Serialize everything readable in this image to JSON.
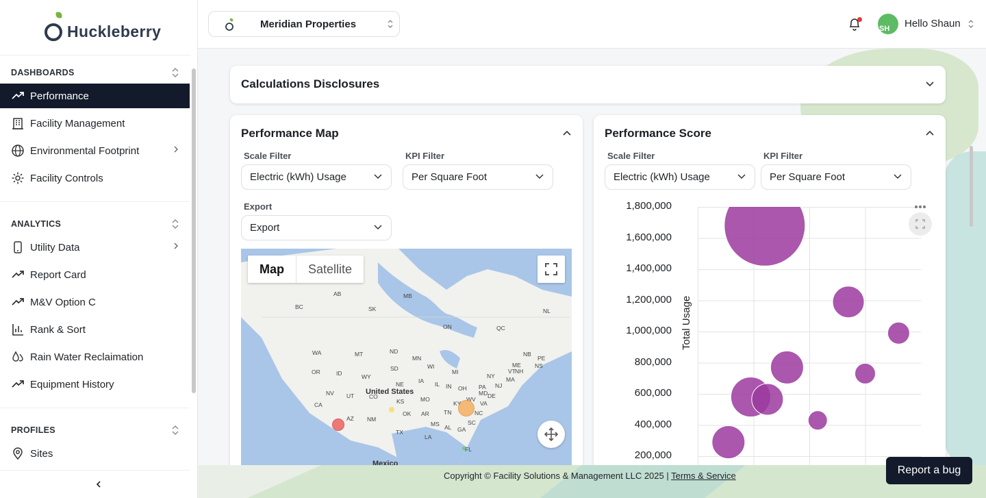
{
  "brand": {
    "name": "Huckleberry"
  },
  "sidebar": {
    "sections": [
      {
        "title": "DASHBOARDS",
        "items": [
          {
            "label": "Performance",
            "icon": "trending-up-icon",
            "active": true
          },
          {
            "label": "Facility Management",
            "icon": "building-icon"
          },
          {
            "label": "Environmental Footprint",
            "icon": "globe-icon",
            "has_children": true
          },
          {
            "label": "Facility Controls",
            "icon": "gear-icon"
          }
        ]
      },
      {
        "title": "ANALYTICS",
        "items": [
          {
            "label": "Utility Data",
            "icon": "phone-icon",
            "has_children": true
          },
          {
            "label": "Report Card",
            "icon": "trending-up-icon"
          },
          {
            "label": "M&V Option C",
            "icon": "trending-up-icon"
          },
          {
            "label": "Rank & Sort",
            "icon": "bar-chart-icon"
          },
          {
            "label": "Rain Water Reclaimation",
            "icon": "droplets-icon"
          },
          {
            "label": "Equipment History",
            "icon": "trending-up-icon"
          }
        ]
      },
      {
        "title": "PROFILES",
        "items": [
          {
            "label": "Sites",
            "icon": "map-pin-icon"
          }
        ]
      }
    ]
  },
  "header": {
    "organization": "Meridian Properties",
    "greeting": "Hello Shaun",
    "avatar_initials": "SH",
    "notification_dot_color": "#e53935"
  },
  "disclosures": {
    "title": "Calculations Disclosures"
  },
  "performance_map": {
    "title": "Performance Map",
    "scale_filter": {
      "label": "Scale Filter",
      "value": "Electric (kWh) Usage"
    },
    "kpi_filter": {
      "label": "KPI Filter",
      "value": "Per Square Foot"
    },
    "export": {
      "label": "Export",
      "value": "Export"
    },
    "map_types": [
      "Map",
      "Satellite"
    ],
    "country_label": "United States",
    "bottom_label": "Mexico",
    "state_labels": [
      "AB",
      "MB",
      "BC",
      "SK",
      "ON",
      "QC",
      "NL",
      "WA",
      "MT",
      "ND",
      "MN",
      "NB",
      "PE",
      "NS",
      "ME",
      "OR",
      "ID",
      "WY",
      "SD",
      "WI",
      "MI",
      "NY",
      "VT",
      "NH",
      "MA",
      "NV",
      "UT",
      "NE",
      "IA",
      "IL",
      "IN",
      "OH",
      "PA",
      "NJ",
      "MD",
      "DE",
      "CA",
      "CO",
      "KS",
      "MO",
      "KY",
      "WV",
      "VA",
      "AZ",
      "NM",
      "OK",
      "AR",
      "TN",
      "NC",
      "SC",
      "MS",
      "AL",
      "GA",
      "TX",
      "LA",
      "FL"
    ],
    "markers": [
      {
        "color": "#ef6b6b"
      },
      {
        "color": "#f5b36b"
      },
      {
        "color": "#f4e27a"
      },
      {
        "color": "#6ad26a"
      }
    ]
  },
  "performance_score": {
    "title": "Performance Score",
    "scale_filter": {
      "label": "Scale Filter",
      "value": "Electric (kWh) Usage"
    },
    "kpi_filter": {
      "label": "KPI Filter",
      "value": "Per Square Foot"
    }
  },
  "chart_data": {
    "type": "scatter",
    "ylabel": "Total Usage",
    "y_ticks": [
      "1,800,000",
      "1,600,000",
      "1,400,000",
      "1,200,000",
      "1,000,000",
      "800,000",
      "600,000",
      "400,000",
      "200,000"
    ],
    "ylim": [
      150000,
      1800000
    ],
    "xlim": [
      0,
      4
    ],
    "grid": true,
    "bubble_color": "#9b3a9f",
    "points": [
      {
        "x": 1.2,
        "y": 1680000,
        "r": 59
      },
      {
        "x": 2.7,
        "y": 1190000,
        "r": 23
      },
      {
        "x": 3.6,
        "y": 990000,
        "r": 16
      },
      {
        "x": 1.6,
        "y": 770000,
        "r": 24
      },
      {
        "x": 3.0,
        "y": 730000,
        "r": 15
      },
      {
        "x": 0.95,
        "y": 580000,
        "r": 29
      },
      {
        "x": 1.25,
        "y": 565000,
        "r": 23
      },
      {
        "x": 2.15,
        "y": 430000,
        "r": 14
      },
      {
        "x": 0.55,
        "y": 290000,
        "r": 24
      }
    ]
  },
  "footer": {
    "copyright": "Copyright © Facility Solutions & Management LLC 2025 |",
    "terms": "Terms & Service"
  },
  "report_bug": {
    "label": "Report a bug"
  }
}
